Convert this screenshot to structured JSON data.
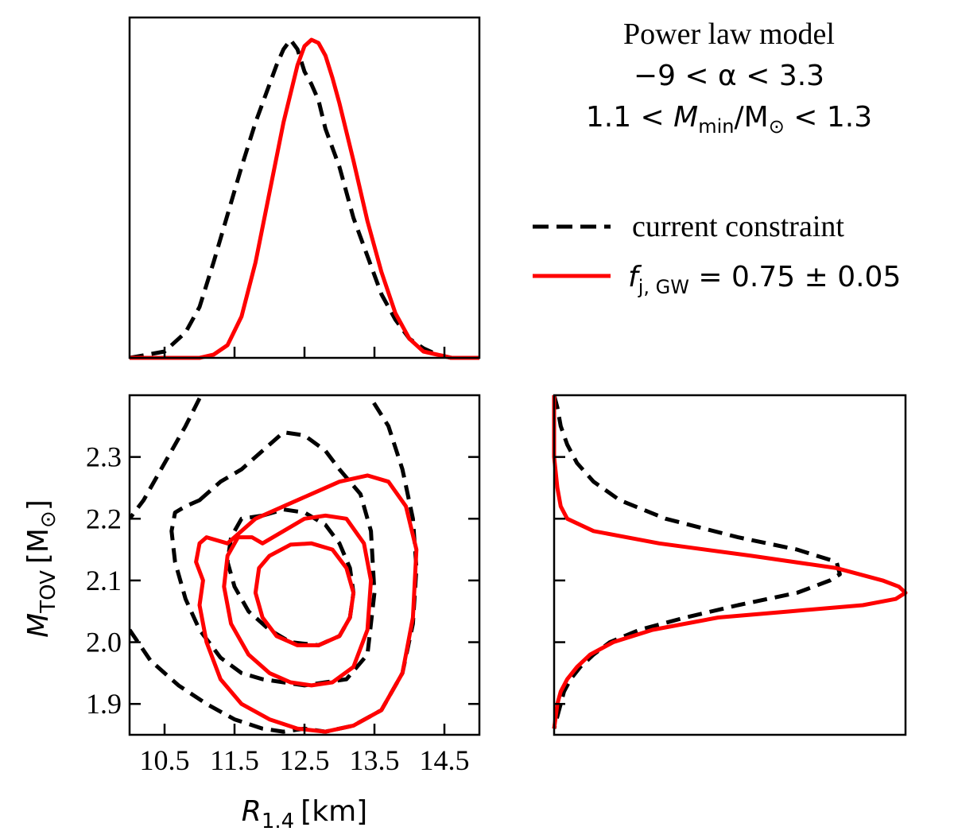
{
  "colors": {
    "current": "#000000",
    "projection": "#ff0000"
  },
  "annotation": {
    "model": "Power law model",
    "alpha_range": "−9 < α < 3.3",
    "mmin_lo": "1.1 < ",
    "mmin_var": "M",
    "mmin_sub": "min",
    "mmin_hi": "/M",
    "mmin_sun": "⊙",
    "mmin_end": " < 1.3"
  },
  "legend": {
    "current_label": "current constraint",
    "proj_var": "f",
    "proj_sub": "j, GW",
    "proj_rest": " = 0.75 ± 0.05"
  },
  "chart_data": [
    {
      "panel": "top-marginal",
      "type": "line",
      "xlim": [
        10,
        15
      ],
      "ylim": [
        0,
        1.07
      ],
      "x_ticks": [
        10.5,
        11.5,
        12.5,
        13.5,
        14.5
      ],
      "series": [
        {
          "name": "current constraint",
          "style": "dashed",
          "x": [
            10,
            10.5,
            10.8,
            11.0,
            11.2,
            11.4,
            11.6,
            11.8,
            12.0,
            12.1,
            12.2,
            12.3,
            12.4,
            12.5,
            12.6,
            12.7,
            12.8,
            13.0,
            13.2,
            13.4,
            13.6,
            13.8,
            14.0,
            14.2,
            14.4,
            14.6,
            14.8
          ],
          "y": [
            0.0,
            0.02,
            0.08,
            0.16,
            0.3,
            0.45,
            0.6,
            0.74,
            0.86,
            0.92,
            0.97,
            1.0,
            0.97,
            0.9,
            0.86,
            0.81,
            0.72,
            0.6,
            0.44,
            0.32,
            0.2,
            0.12,
            0.06,
            0.03,
            0.01,
            0.0,
            0.0
          ]
        },
        {
          "name": "f_j,GW = 0.75 ± 0.05",
          "style": "solid",
          "x": [
            10,
            11.0,
            11.2,
            11.4,
            11.6,
            11.8,
            12.0,
            12.2,
            12.4,
            12.5,
            12.6,
            12.7,
            12.8,
            12.9,
            13.0,
            13.2,
            13.4,
            13.6,
            13.8,
            14.0,
            14.2,
            14.4,
            14.6,
            15.0
          ],
          "y": [
            0.0,
            0.0,
            0.01,
            0.04,
            0.13,
            0.3,
            0.52,
            0.74,
            0.92,
            0.98,
            1.0,
            0.99,
            0.95,
            0.88,
            0.8,
            0.62,
            0.43,
            0.27,
            0.14,
            0.06,
            0.02,
            0.01,
            0.0,
            0.0
          ]
        }
      ]
    },
    {
      "panel": "joint",
      "type": "line",
      "xlabel_var": "R",
      "xlabel_sub": "1.4",
      "xlabel_unit": "[km]",
      "ylabel_var": "M",
      "ylabel_sub": "TOV",
      "ylabel_unit_open": "[M",
      "ylabel_sun": "⊙",
      "ylabel_unit_close": "]",
      "xlim": [
        10,
        15
      ],
      "ylim": [
        1.85,
        2.4
      ],
      "x_ticks": [
        10.5,
        11.5,
        12.5,
        13.5,
        14.5
      ],
      "x_tick_labels": [
        "10.5",
        "11.5",
        "12.5",
        "13.5",
        "14.5"
      ],
      "y_ticks": [
        1.9,
        2.0,
        2.1,
        2.2,
        2.3
      ],
      "y_tick_labels": [
        "1.9",
        "2.0",
        "2.1",
        "2.2",
        "2.3"
      ],
      "series": [
        {
          "name": "current inner contour",
          "style": "dashed",
          "closed": true,
          "x": [
            11.9,
            12.2,
            12.5,
            12.8,
            13.0,
            13.15,
            13.2,
            13.15,
            13.0,
            12.7,
            12.3,
            12.0,
            11.7,
            11.5,
            11.4,
            11.45,
            11.6
          ],
          "y": [
            2.205,
            2.215,
            2.21,
            2.19,
            2.16,
            2.12,
            2.08,
            2.04,
            2.01,
            1.995,
            2.0,
            2.02,
            2.05,
            2.09,
            2.13,
            2.17,
            2.2
          ]
        },
        {
          "name": "current middle contour",
          "style": "dashed",
          "closed": true,
          "x": [
            11.0,
            11.3,
            11.6,
            11.9,
            12.2,
            12.5,
            12.8,
            13.0,
            13.3,
            13.45,
            13.5,
            13.4,
            13.1,
            12.8,
            12.5,
            12.2,
            11.9,
            11.6,
            11.3,
            11.0,
            10.8,
            10.65,
            10.6,
            10.65,
            10.8
          ],
          "y": [
            2.23,
            2.26,
            2.28,
            2.31,
            2.34,
            2.335,
            2.31,
            2.28,
            2.24,
            2.18,
            2.08,
            1.98,
            1.94,
            1.935,
            1.93,
            1.935,
            1.94,
            1.95,
            1.975,
            2.02,
            2.07,
            2.13,
            2.18,
            2.21,
            2.22
          ]
        },
        {
          "name": "current outer contour (left)",
          "style": "dashed",
          "closed": false,
          "x": [
            11.0,
            10.8,
            10.6,
            10.4,
            10.2,
            10.0
          ],
          "y": [
            2.395,
            2.35,
            2.31,
            2.27,
            2.23,
            2.2
          ]
        },
        {
          "name": "current outer contour (right/bottom)",
          "style": "dashed",
          "closed": false,
          "x": [
            10.0,
            10.3,
            10.7,
            11.1,
            11.5,
            11.9,
            12.2,
            12.5,
            12.8,
            13.2,
            13.6,
            13.9,
            14.05,
            14.1,
            14.05,
            13.9,
            13.7,
            13.45
          ],
          "y": [
            2.02,
            1.97,
            1.93,
            1.9,
            1.875,
            1.86,
            1.855,
            1.86,
            1.855,
            1.865,
            1.89,
            1.95,
            2.03,
            2.12,
            2.2,
            2.28,
            2.35,
            2.395
          ]
        },
        {
          "name": "projection inner contour",
          "style": "solid",
          "closed": true,
          "x": [
            12.0,
            12.3,
            12.6,
            12.9,
            13.1,
            13.2,
            13.15,
            13.0,
            12.7,
            12.4,
            12.1,
            11.9,
            11.8,
            11.85
          ],
          "y": [
            2.14,
            2.158,
            2.16,
            2.15,
            2.12,
            2.08,
            2.04,
            2.01,
            1.995,
            1.995,
            2.01,
            2.04,
            2.08,
            2.12
          ]
        },
        {
          "name": "projection middle contour",
          "style": "solid",
          "closed": true,
          "x": [
            11.9,
            12.2,
            12.5,
            12.8,
            13.1,
            13.35,
            13.45,
            13.4,
            13.2,
            12.9,
            12.6,
            12.3,
            12.0,
            11.7,
            11.45,
            11.35,
            11.4,
            11.55,
            11.75
          ],
          "y": [
            2.16,
            2.18,
            2.2,
            2.205,
            2.2,
            2.16,
            2.1,
            2.02,
            1.96,
            1.935,
            1.93,
            1.935,
            1.95,
            1.98,
            2.03,
            2.09,
            2.14,
            2.17,
            2.17
          ]
        },
        {
          "name": "projection outer contour",
          "style": "solid",
          "closed": true,
          "x": [
            11.1,
            11.4,
            11.8,
            12.2,
            12.6,
            13.0,
            13.4,
            13.7,
            13.95,
            14.1,
            14.05,
            13.9,
            13.6,
            13.2,
            12.8,
            12.4,
            12.0,
            11.6,
            11.3,
            11.1,
            11.0,
            11.05,
            10.95,
            11.0
          ],
          "y": [
            2.17,
            2.16,
            2.2,
            2.22,
            2.24,
            2.26,
            2.27,
            2.26,
            2.22,
            2.15,
            2.04,
            1.95,
            1.89,
            1.865,
            1.855,
            1.86,
            1.875,
            1.9,
            1.94,
            2.0,
            2.06,
            2.1,
            2.13,
            2.16
          ]
        }
      ]
    },
    {
      "panel": "right-marginal",
      "type": "line",
      "ylim": [
        1.85,
        2.4
      ],
      "xlim": [
        0,
        1.07
      ],
      "y_ticks": [
        1.9,
        2.0,
        2.1,
        2.2,
        2.3
      ],
      "series": [
        {
          "name": "current constraint",
          "style": "dashed",
          "y": [
            2.4,
            2.38,
            2.35,
            2.32,
            2.29,
            2.26,
            2.23,
            2.2,
            2.17,
            2.15,
            2.13,
            2.11,
            2.1,
            2.08,
            2.06,
            2.04,
            2.02,
            2.0,
            1.98,
            1.96,
            1.94,
            1.92,
            1.9,
            1.88,
            1.86
          ],
          "x": [
            0.0,
            0.01,
            0.02,
            0.04,
            0.07,
            0.12,
            0.2,
            0.34,
            0.56,
            0.74,
            0.86,
            0.87,
            0.84,
            0.74,
            0.56,
            0.4,
            0.26,
            0.17,
            0.12,
            0.08,
            0.05,
            0.03,
            0.02,
            0.01,
            0.0
          ]
        },
        {
          "name": "f_j,GW = 0.75 ± 0.05",
          "style": "solid",
          "y": [
            2.4,
            2.3,
            2.25,
            2.22,
            2.2,
            2.18,
            2.16,
            2.14,
            2.12,
            2.1,
            2.09,
            2.08,
            2.07,
            2.06,
            2.05,
            2.04,
            2.02,
            2.0,
            1.98,
            1.96,
            1.94,
            1.92,
            1.9,
            1.88,
            1.86
          ],
          "x": [
            0.0,
            0.0,
            0.01,
            0.02,
            0.04,
            0.12,
            0.32,
            0.6,
            0.86,
            1.0,
            1.05,
            1.07,
            1.04,
            0.94,
            0.72,
            0.5,
            0.3,
            0.18,
            0.11,
            0.07,
            0.04,
            0.02,
            0.01,
            0.005,
            0.0
          ]
        }
      ]
    }
  ]
}
